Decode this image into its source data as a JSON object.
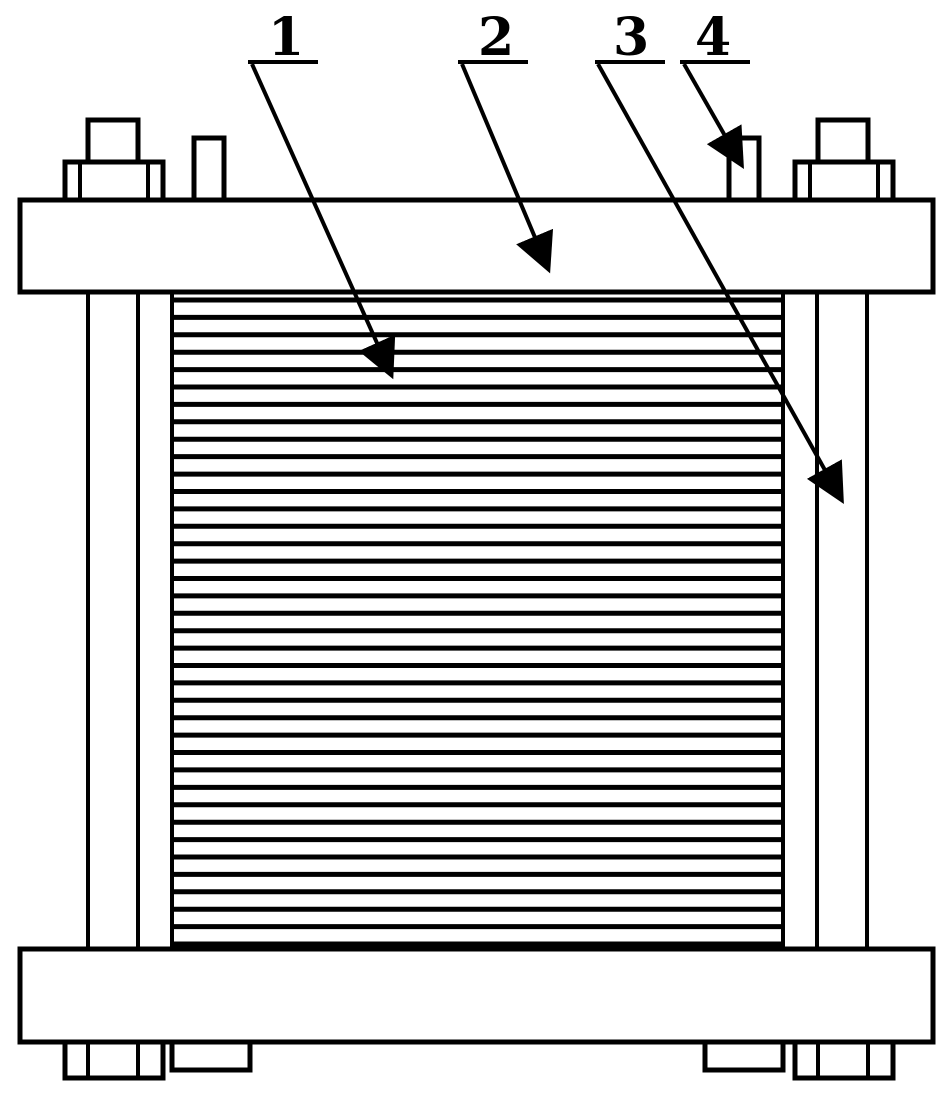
{
  "diagram": {
    "colors": {
      "line": "#000000",
      "background": "#ffffff"
    },
    "plate_count": 38,
    "callouts": [
      {
        "label": "1",
        "part": "plate-stack"
      },
      {
        "label": "2",
        "part": "top-end-plate"
      },
      {
        "label": "3",
        "part": "tie-rod-frame"
      },
      {
        "label": "4",
        "part": "port-nozzle"
      }
    ]
  }
}
